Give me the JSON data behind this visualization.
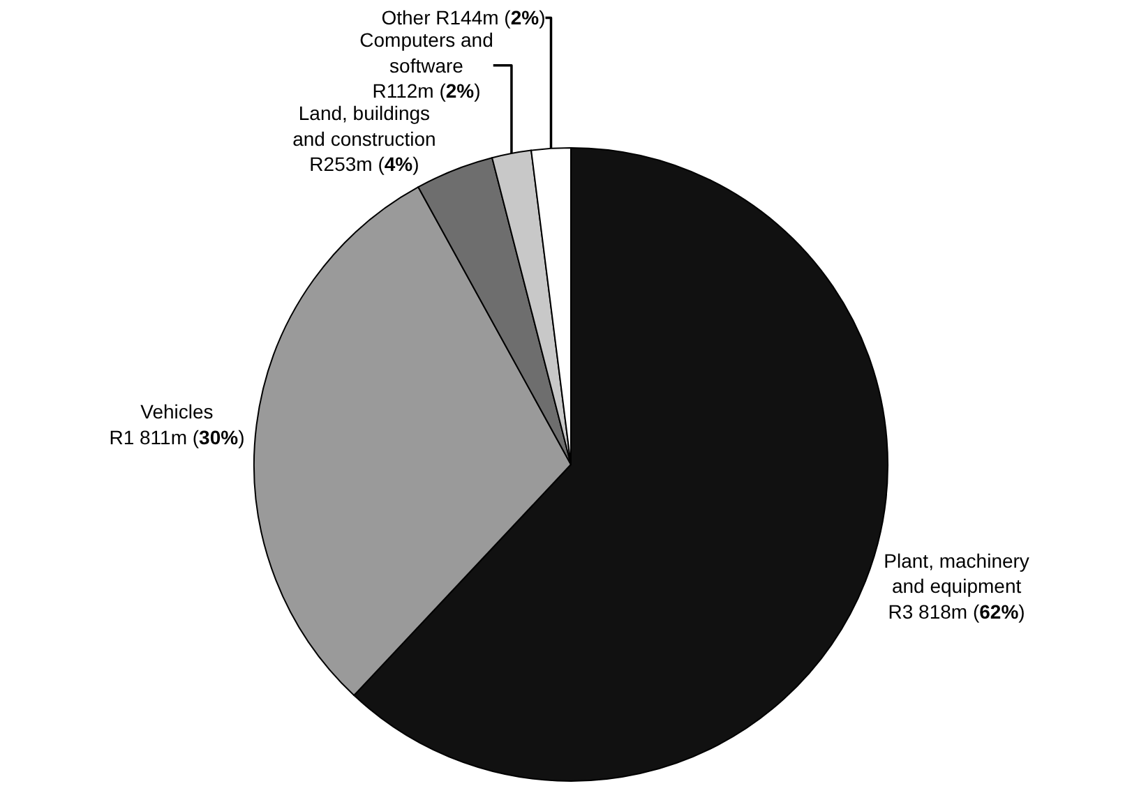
{
  "chart_data": {
    "type": "pie",
    "categories": [
      "Plant, machinery and equipment",
      "Vehicles",
      "Land, buildings and construction",
      "Computers and software",
      "Other"
    ],
    "values": [
      62,
      30,
      4,
      2,
      2
    ],
    "colors": [
      "#111111",
      "#9a9a9a",
      "#6e6e6e",
      "#c8c8c8",
      "#ffffff"
    ],
    "value_labels": [
      "R3 818m (62%)",
      "R1 811m (30%)",
      "R253m (4%)",
      "R112m (2%)",
      "R144m (2%)"
    ],
    "legend": false
  }
}
